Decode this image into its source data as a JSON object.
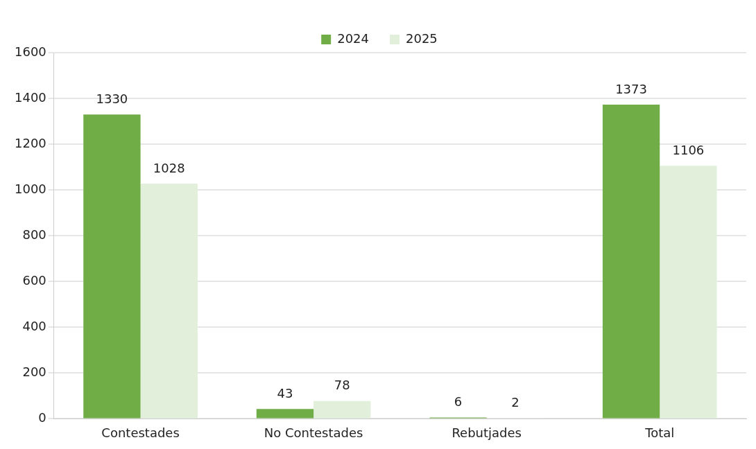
{
  "chart_data": {
    "type": "bar",
    "categories": [
      "Contestades",
      "No Contestades",
      "Rebutjades",
      "Total"
    ],
    "series": [
      {
        "name": "2024",
        "color": "#70ad47",
        "values": [
          1330,
          43,
          6,
          1373
        ]
      },
      {
        "name": "2025",
        "color": "#e2efda",
        "values": [
          1028,
          78,
          2,
          1106
        ]
      }
    ],
    "ylim": [
      0,
      1600
    ],
    "yticks": [
      0,
      200,
      400,
      600,
      800,
      1000,
      1200,
      1400,
      1600
    ],
    "grid": "y",
    "legend": "top",
    "data_labels": true
  }
}
